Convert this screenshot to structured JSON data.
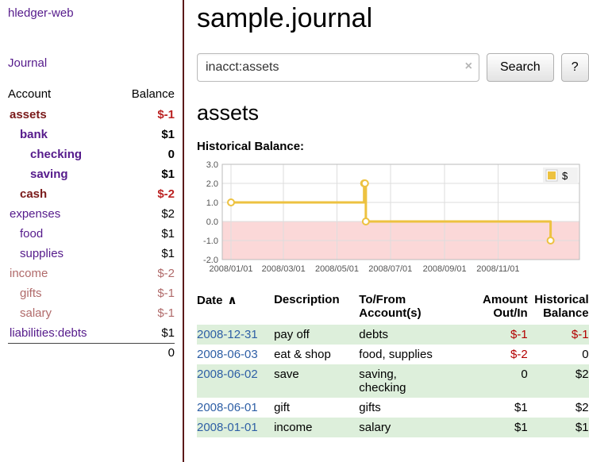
{
  "app": {
    "title": "hledger-web"
  },
  "colors": {
    "brand_purple": "#551a8b",
    "negative_strong_red": "#bb2222",
    "negative_pale_red": "#b06a6a",
    "amount_red": "#b30000",
    "date_link_blue": "#2e5fa5",
    "row_stripe_green": "#ddefdb",
    "series_yellow": "#edc240",
    "negative_region_pink": "#fbd8d8",
    "divider_maroon": "#5b1a1a"
  },
  "sidebar": {
    "journal_link": "Journal",
    "accounts": {
      "header_account": "Account",
      "header_balance": "Balance",
      "rows": [
        {
          "name": "assets",
          "balance": "$-1",
          "indent": 0,
          "bold": true,
          "tone": "neg"
        },
        {
          "name": "bank",
          "balance": "$1",
          "indent": 1,
          "bold": true,
          "tone": "pos"
        },
        {
          "name": "checking",
          "balance": "0",
          "indent": 2,
          "bold": true,
          "tone": "pos"
        },
        {
          "name": "saving",
          "balance": "$1",
          "indent": 2,
          "bold": true,
          "tone": "pos"
        },
        {
          "name": "cash",
          "balance": "$-2",
          "indent": 1,
          "bold": true,
          "tone": "neg"
        },
        {
          "name": "expenses",
          "balance": "$2",
          "indent": 0,
          "bold": false,
          "tone": "pos"
        },
        {
          "name": "food",
          "balance": "$1",
          "indent": 1,
          "bold": false,
          "tone": "pos"
        },
        {
          "name": "supplies",
          "balance": "$1",
          "indent": 1,
          "bold": false,
          "tone": "pos"
        },
        {
          "name": "income",
          "balance": "$-2",
          "indent": 0,
          "bold": false,
          "tone": "paleneg"
        },
        {
          "name": "gifts",
          "balance": "$-1",
          "indent": 1,
          "bold": false,
          "tone": "paleneg"
        },
        {
          "name": "salary",
          "balance": "$-1",
          "indent": 1,
          "bold": false,
          "tone": "paleneg"
        },
        {
          "name": "liabilities:debts",
          "balance": "$1",
          "indent": 0,
          "bold": false,
          "tone": "pos"
        }
      ],
      "total": "0"
    }
  },
  "main": {
    "title": "sample.journal",
    "search": {
      "value": "inacct:assets",
      "clear_icon": "×",
      "search_button": "Search",
      "help_button": "?"
    },
    "account_heading": "assets",
    "chart_heading": "Historical Balance:"
  },
  "chart_data": {
    "type": "line",
    "subtype": "step",
    "title": "Historical Balance",
    "series": [
      {
        "name": "$",
        "color": "#edc240",
        "points": [
          {
            "date": "2008-01-01",
            "day": 0,
            "value": 1
          },
          {
            "date": "2008-06-01",
            "day": 152,
            "value": 2
          },
          {
            "date": "2008-06-02",
            "day": 153,
            "value": 2
          },
          {
            "date": "2008-06-03",
            "day": 154,
            "value": 0
          },
          {
            "date": "2008-12-31",
            "day": 365,
            "value": -1
          }
        ]
      }
    ],
    "ylim": [
      -2,
      3
    ],
    "yticks": [
      3.0,
      2.0,
      1.0,
      0.0,
      -1.0,
      -2.0
    ],
    "ytick_labels": [
      "3.0",
      "2.0",
      "1.0",
      "0.0",
      "-1.0",
      "-2.0"
    ],
    "xtick_days": [
      0,
      60,
      121,
      182,
      244,
      305
    ],
    "xtick_labels": [
      "2008/01/01",
      "2008/03/01",
      "2008/05/01",
      "2008/07/01",
      "2008/09/01",
      "2008/11/01"
    ],
    "xlim_days": [
      -10,
      398
    ],
    "grid": true,
    "legend_position": "top-right",
    "negative_region_color": "#fbd8d8"
  },
  "register": {
    "headers": [
      "Date",
      "Description",
      "To/From\nAccount(s)",
      "Amount\nOut/In",
      "Historical\nBalance"
    ],
    "sort_icon": "∧",
    "rows": [
      {
        "date": "2008-12-31",
        "description": "pay off",
        "accounts": "debts",
        "amount": "$-1",
        "amount_negative": true,
        "balance": "$-1",
        "balance_negative": true
      },
      {
        "date": "2008-06-03",
        "description": "eat & shop",
        "accounts": "food, supplies",
        "amount": "$-2",
        "amount_negative": true,
        "balance": "0",
        "balance_negative": false
      },
      {
        "date": "2008-06-02",
        "description": "save",
        "accounts": "saving,\nchecking",
        "amount": "0",
        "amount_negative": false,
        "balance": "$2",
        "balance_negative": false
      },
      {
        "date": "2008-06-01",
        "description": "gift",
        "accounts": "gifts",
        "amount": "$1",
        "amount_negative": false,
        "balance": "$2",
        "balance_negative": false
      },
      {
        "date": "2008-01-01",
        "description": "income",
        "accounts": "salary",
        "amount": "$1",
        "amount_negative": false,
        "balance": "$1",
        "balance_negative": false
      }
    ]
  }
}
